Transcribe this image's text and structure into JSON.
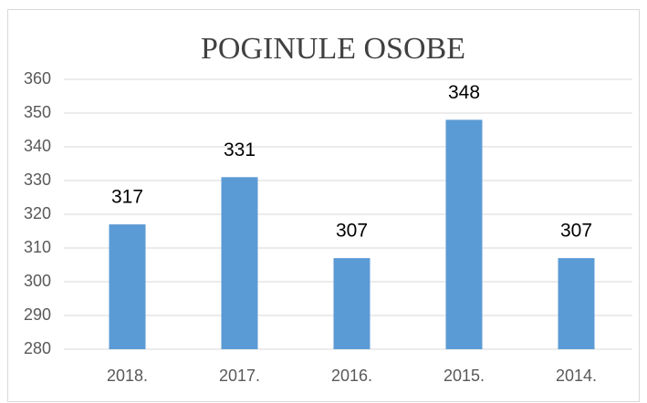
{
  "chart_data": {
    "type": "bar",
    "title": "POGINULE OSOBE",
    "categories": [
      "2018.",
      "2017.",
      "2016.",
      "2015.",
      "2014."
    ],
    "values": [
      317,
      331,
      307,
      348,
      307
    ],
    "color": "#5b9bd5",
    "ylim": [
      280,
      360
    ],
    "yticks": [
      280,
      290,
      300,
      310,
      320,
      330,
      340,
      350,
      360
    ],
    "grid": true
  }
}
